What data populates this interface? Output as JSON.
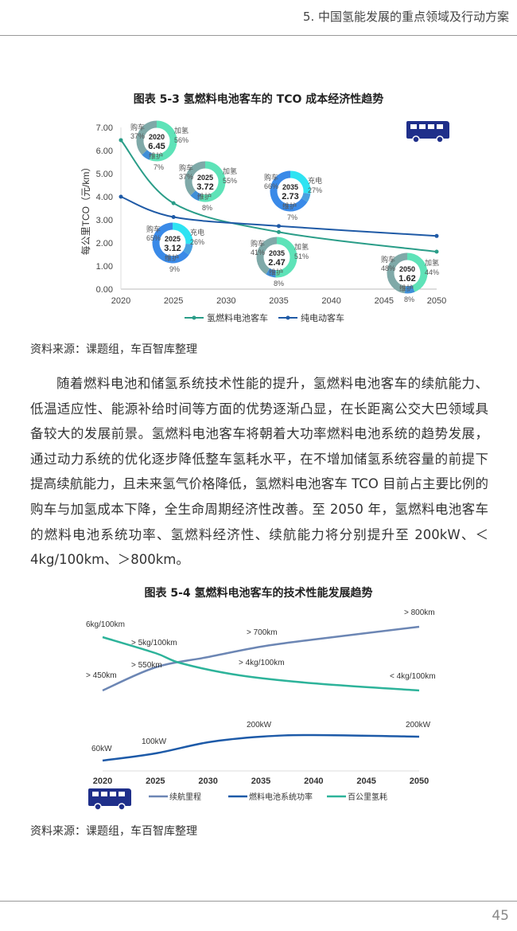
{
  "header": {
    "section_title": "5. 中国氢能发展的重点领域及行动方案"
  },
  "figure1": {
    "title": "图表 5-3  氢燃料电池客车的 TCO 成本经济性趋势",
    "source": "资料来源：课题组，车百智库整理"
  },
  "body": {
    "paragraph": "随着燃料电池和储氢系统技术性能的提升，氢燃料电池客车的续航能力、低温适应性、能源补给时间等方面的优势逐渐凸显，在长距离公交大巴领域具备较大的发展前景。氢燃料电池客车将朝着大功率燃料电池系统的趋势发展，通过动力系统的优化逐步降低整车氢耗水平，在不增加储氢系统容量的前提下提高续航能力，且未来氢气价格降低，氢燃料电池客车 TCO 目前占主要比例的购车与加氢成本下降，全生命周期经济性改善。至 2050 年，氢燃料电池客车的燃料电池系统功率、氢燃料经济性、续航能力将分别提升至 200kW、＜4kg/100km、＞800km。"
  },
  "figure2": {
    "title": "图表 5-4  氢燃料电池客车的技术性能发展趋势",
    "source": "资料来源：课题组，车百智库整理"
  },
  "footer": {
    "page_number": "45"
  },
  "chart_data": [
    {
      "type": "line",
      "ylabel": "每公里TCO（元/km）",
      "ylim": [
        0,
        7
      ],
      "yticks": [
        "0.00",
        "1.00",
        "2.00",
        "3.00",
        "4.00",
        "5.00",
        "6.00",
        "7.00"
      ],
      "xticks": [
        "2020",
        "2025",
        "2030",
        "2035",
        "2040",
        "2045",
        "2050"
      ],
      "legend_position": "bottom",
      "icon": "bus-icon",
      "series": [
        {
          "name": "氢燃料电池客车",
          "color": "#2a9d88",
          "x": [
            2020,
            2025,
            2035,
            2050
          ],
          "values": [
            6.45,
            3.72,
            2.47,
            1.62
          ]
        },
        {
          "name": "纯电动客车",
          "color": "#1f5aa6",
          "x": [
            2020,
            2025,
            2035,
            2050
          ],
          "values": [
            4.0,
            3.12,
            2.73,
            2.3
          ]
        }
      ],
      "donuts": [
        {
          "type": "fcev",
          "year": "2020",
          "value": "6.45",
          "segments": [
            {
              "label": "购车",
              "pct": 37
            },
            {
              "label": "加氢",
              "pct": 56
            },
            {
              "label": "维护",
              "pct": 7
            }
          ]
        },
        {
          "type": "fcev",
          "year": "2025",
          "value": "3.72",
          "segments": [
            {
              "label": "购车",
              "pct": 37
            },
            {
              "label": "加氢",
              "pct": 55
            },
            {
              "label": "维护",
              "pct": 8
            }
          ]
        },
        {
          "type": "bev",
          "year": "2035",
          "value": "2.73",
          "segments": [
            {
              "label": "购车",
              "pct": 66
            },
            {
              "label": "充电",
              "pct": 27
            },
            {
              "label": "维护",
              "pct": 7
            }
          ]
        },
        {
          "type": "bev",
          "year": "2025",
          "value": "3.12",
          "segments": [
            {
              "label": "购车",
              "pct": 65
            },
            {
              "label": "充电",
              "pct": 26
            },
            {
              "label": "维护",
              "pct": 9
            }
          ]
        },
        {
          "type": "fcev",
          "year": "2035",
          "value": "2.47",
          "segments": [
            {
              "label": "购车",
              "pct": 41
            },
            {
              "label": "加氢",
              "pct": 51
            },
            {
              "label": "维护",
              "pct": 8
            }
          ]
        },
        {
          "type": "fcev",
          "year": "2050",
          "value": "1.62",
          "segments": [
            {
              "label": "购车",
              "pct": 48
            },
            {
              "label": "加氢",
              "pct": 44
            },
            {
              "label": "维护",
              "pct": 8
            }
          ]
        }
      ],
      "donut_colors": {
        "fcev": [
          "#7fa9a8",
          "#5ee3b8",
          "#3f8fd8"
        ],
        "bev": [
          "#3a8ae8",
          "#2fe3f2",
          "#4aa0e0"
        ]
      }
    },
    {
      "type": "line",
      "xticks": [
        "2020",
        "2025",
        "2030",
        "2035",
        "2040",
        "2045",
        "2050"
      ],
      "legend_position": "bottom",
      "icon": "bus-icon",
      "series": [
        {
          "name": "续航里程",
          "color": "#6c86b4",
          "labels": [
            {
              "year": 2020,
              "text": "> 450km"
            },
            {
              "year": 2025,
              "text": "> 550km"
            },
            {
              "year": 2035,
              "text": "> 700km"
            },
            {
              "year": 2050,
              "text": "> 800km"
            }
          ]
        },
        {
          "name": "燃料电池系统功率",
          "color": "#1d5aa8",
          "labels": [
            {
              "year": 2020,
              "text": "60kW"
            },
            {
              "year": 2025,
              "text": "100kW"
            },
            {
              "year": 2035,
              "text": "200kW"
            },
            {
              "year": 2050,
              "text": "200kW"
            }
          ]
        },
        {
          "name": "百公里氢耗",
          "color": "#2db39a",
          "labels": [
            {
              "year": 2020,
              "text": "6kg/100km"
            },
            {
              "year": 2025,
              "text": "> 5kg/100km"
            },
            {
              "year": 2035,
              "text": "> 4kg/100km"
            },
            {
              "year": 2050,
              "text": "< 4kg/100km"
            }
          ]
        }
      ]
    }
  ]
}
